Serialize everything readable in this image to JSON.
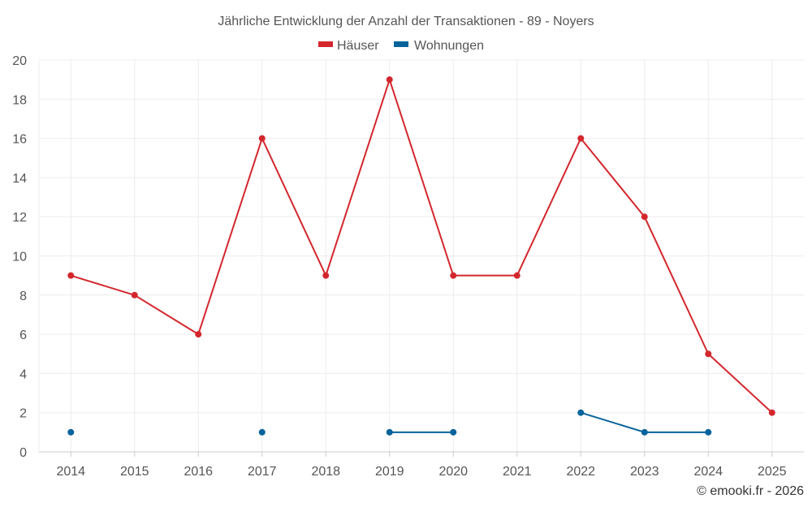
{
  "chart_data": {
    "type": "line",
    "title": "Jährliche Entwicklung der Anzahl der Transaktionen - 89 - Noyers",
    "categories": [
      "2014",
      "2015",
      "2016",
      "2017",
      "2018",
      "2019",
      "2020",
      "2021",
      "2022",
      "2023",
      "2024",
      "2025"
    ],
    "series": [
      {
        "name": "Häuser",
        "color": "#d3272d",
        "values": [
          9,
          8,
          6,
          16,
          9,
          19,
          9,
          9,
          16,
          12,
          5,
          2
        ]
      },
      {
        "name": "Wohnungen",
        "color": "#07639b",
        "values": [
          1,
          null,
          null,
          1,
          null,
          1,
          1,
          null,
          2,
          1,
          1,
          null
        ]
      }
    ],
    "ylim": [
      0,
      20
    ],
    "yticks": [
      0,
      2,
      4,
      6,
      8,
      10,
      12,
      14,
      16,
      18,
      20
    ],
    "grid": true,
    "legend": "top-center",
    "credit": "© emooki.fr - 2026"
  }
}
